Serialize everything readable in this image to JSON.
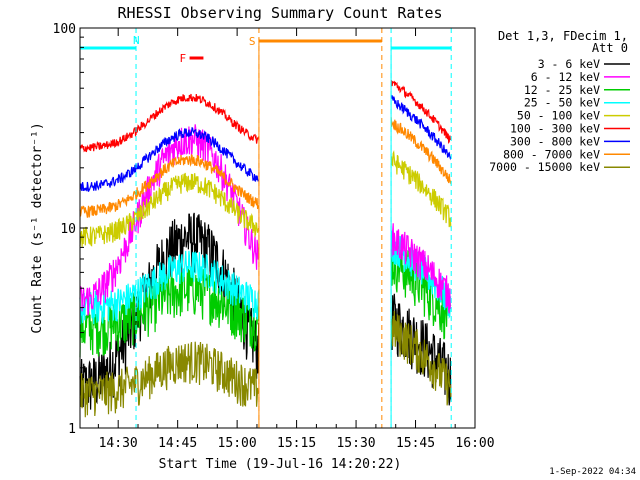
{
  "chart_data": {
    "type": "line",
    "title": "RHESSI Observing Summary Count Rates",
    "xlabel": "Start Time (19-Jul-16 14:20:22)",
    "ylabel": "Count Rate (s⁻¹ detector⁻¹)",
    "yscale": "log",
    "ylim": [
      1,
      100
    ],
    "xlim": [
      "14:20:22",
      "16:00:00"
    ],
    "x_ticks": [
      "14:30",
      "14:45",
      "15:00",
      "15:15",
      "15:30",
      "15:45",
      "16:00"
    ],
    "y_ticks": [
      "1",
      "10",
      "100"
    ],
    "grid": false,
    "legend_position": "right",
    "legend_title": [
      "Det 1,3, FDecim 1,",
      "Att 0"
    ],
    "series": [
      {
        "name": "3 - 6 keV",
        "color": "#000000",
        "peak": 9,
        "base": 1.6,
        "end": 1.8,
        "noise": 0.35
      },
      {
        "name": "6 - 12 keV",
        "color": "#ff00ff",
        "peak": 28,
        "base": 4.2,
        "end": 4.5,
        "noise": 0.2
      },
      {
        "name": "12 - 25 keV",
        "color": "#00cc00",
        "peak": 5,
        "base": 3.2,
        "end": 3.5,
        "noise": 0.3
      },
      {
        "name": "25 - 50 keV",
        "color": "#00ffff",
        "peak": 6.5,
        "base": 4.0,
        "end": 4.2,
        "noise": 0.2
      },
      {
        "name": "50 - 100 keV",
        "color": "#cccc00",
        "peak": 17,
        "base": 9,
        "end": 11,
        "noise": 0.12
      },
      {
        "name": "100 - 300 keV",
        "color": "#ff0000",
        "peak": 45,
        "base": 25,
        "end": 27,
        "noise": 0.05
      },
      {
        "name": "300 - 800 keV",
        "color": "#0000ff",
        "peak": 30,
        "base": 16,
        "end": 22,
        "noise": 0.06
      },
      {
        "name": "800 - 7000 keV",
        "color": "#ff8800",
        "peak": 22,
        "base": 12,
        "end": 17,
        "noise": 0.07
      },
      {
        "name": "7000 - 15000 keV",
        "color": "#888800",
        "peak": 2.2,
        "base": 1.5,
        "end": 1.6,
        "noise": 0.25
      }
    ],
    "segments": [
      {
        "start": "14:20:22",
        "end": "15:05:30"
      },
      {
        "start": "15:38:50",
        "end": "15:54:00"
      }
    ],
    "annotations": [
      {
        "label": "N",
        "color": "#00ffff",
        "start": "14:20:22",
        "end": "14:34:30"
      },
      {
        "label": "N",
        "color": "#00ffff",
        "start": "15:38:50",
        "end": "15:54:00"
      },
      {
        "label": "S",
        "color": "#ff8800",
        "start": "15:05:30",
        "end": "15:36:30"
      },
      {
        "label": "F",
        "color": "#ff0000",
        "start": "14:48:00",
        "end": "14:51:30"
      }
    ],
    "markers": [
      {
        "time": "14:34:30",
        "color": "#00ffff"
      },
      {
        "time": "15:05:30",
        "color": "#ff8800"
      },
      {
        "time": "15:36:30",
        "color": "#ff8800"
      },
      {
        "time": "15:38:50",
        "color": "#00ffff"
      },
      {
        "time": "15:54:00",
        "color": "#00ffff"
      }
    ]
  },
  "footer": {
    "timestamp": "1-Sep-2022 04:34"
  }
}
